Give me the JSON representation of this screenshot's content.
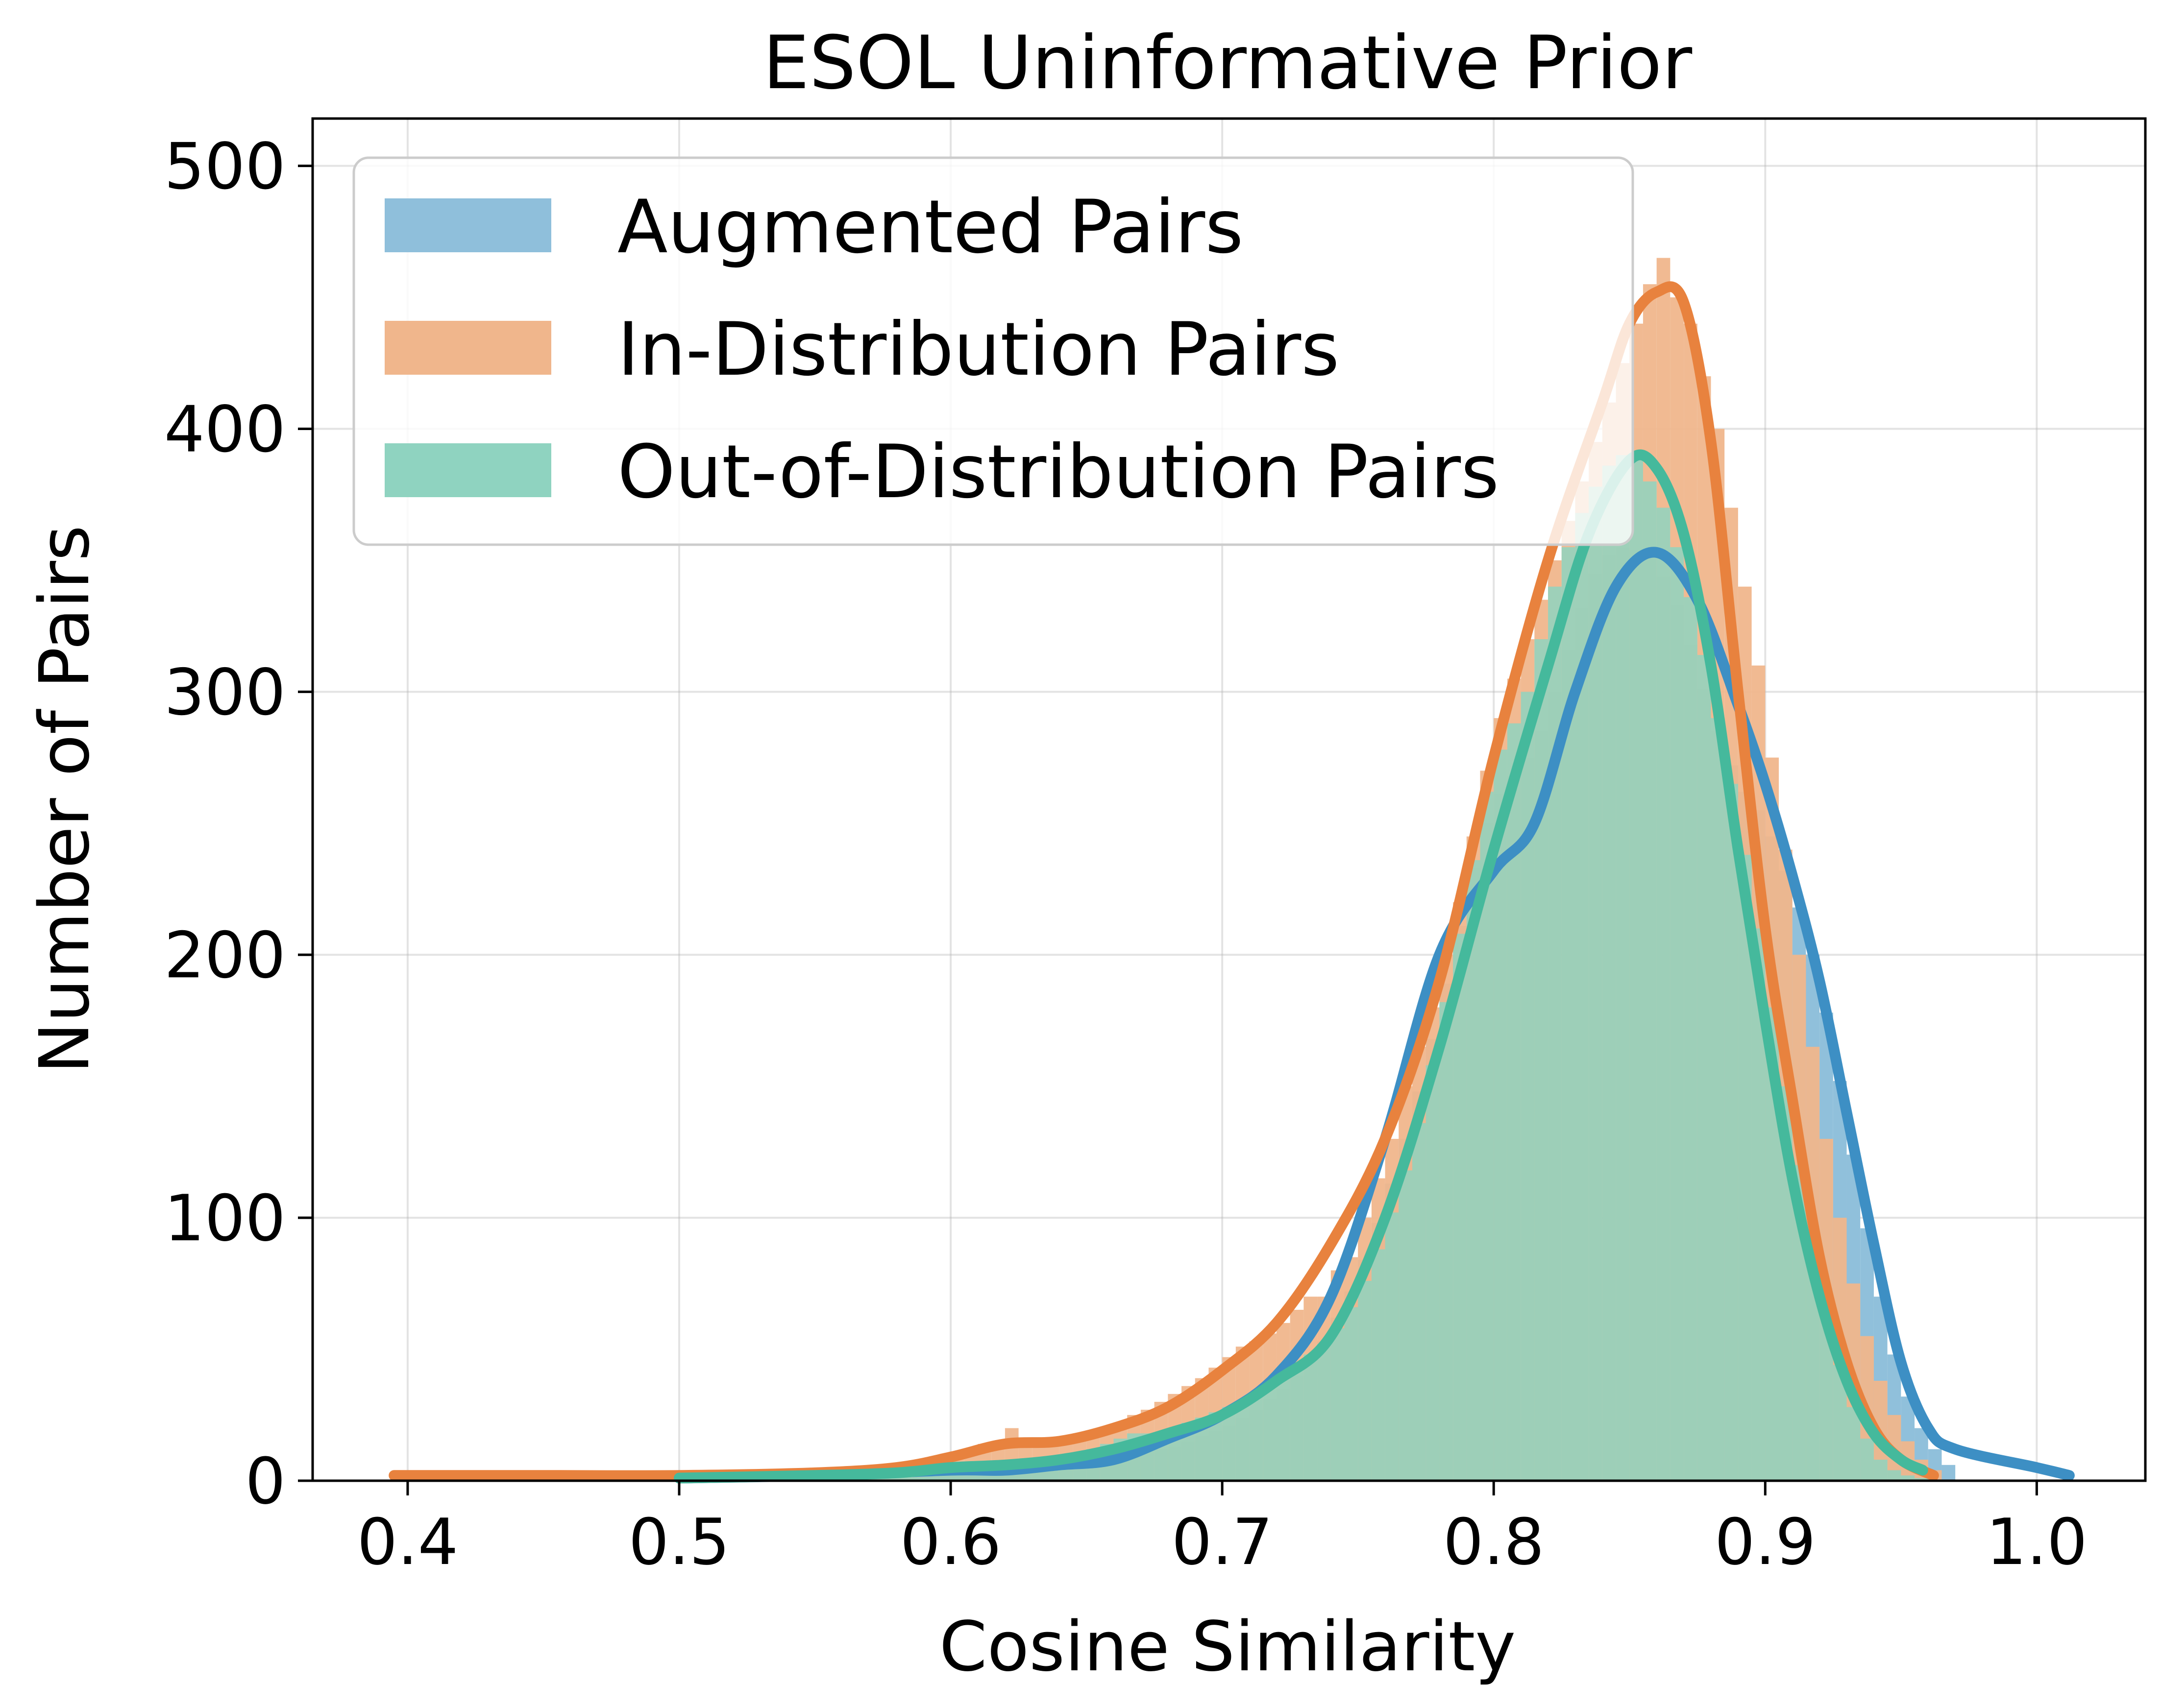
{
  "chart_data": {
    "type": "histogram",
    "title": "ESOL Uninformative Prior",
    "xlabel": "Cosine Similarity",
    "ylabel": "Number of Pairs",
    "xlim": [
      0.365,
      1.04
    ],
    "ylim": [
      0,
      518
    ],
    "xticks": [
      0.4,
      0.5,
      0.6,
      0.7,
      0.8,
      0.9,
      1.0
    ],
    "xtick_labels": [
      "0.4",
      "0.5",
      "0.6",
      "0.7",
      "0.8",
      "0.9",
      "1.0"
    ],
    "yticks": [
      0,
      100,
      200,
      300,
      400,
      500
    ],
    "ytick_labels": [
      "0",
      "100",
      "200",
      "300",
      "400",
      "500"
    ],
    "grid": true,
    "legend_position": "upper-left",
    "series": [
      {
        "name": "Augmented Pairs",
        "fill_color": "#8fbfdb",
        "line_color": "#3d8fc4",
        "bins": [
          0.515,
          0.52,
          0.525,
          0.53,
          0.535,
          0.54,
          0.545,
          0.55,
          0.555,
          0.56,
          0.565,
          0.57,
          0.575,
          0.58,
          0.585,
          0.59,
          0.595,
          0.6,
          0.605,
          0.61,
          0.615,
          0.62,
          0.625,
          0.63,
          0.635,
          0.64,
          0.645,
          0.65,
          0.655,
          0.66,
          0.665,
          0.67,
          0.675,
          0.68,
          0.685,
          0.69,
          0.695,
          0.7,
          0.705,
          0.71,
          0.715,
          0.72,
          0.725,
          0.73,
          0.735,
          0.74,
          0.745,
          0.75,
          0.755,
          0.76,
          0.765,
          0.77,
          0.775,
          0.78,
          0.785,
          0.79,
          0.795,
          0.8,
          0.805,
          0.81,
          0.815,
          0.82,
          0.825,
          0.83,
          0.835,
          0.84,
          0.845,
          0.85,
          0.855,
          0.86,
          0.865,
          0.87,
          0.875,
          0.88,
          0.885,
          0.89,
          0.895,
          0.9,
          0.905,
          0.91,
          0.915,
          0.92,
          0.925,
          0.93,
          0.935,
          0.94,
          0.945,
          0.95,
          0.955,
          0.96,
          0.965
        ],
        "counts": [
          2,
          0,
          1,
          0,
          1,
          1,
          1,
          2,
          1,
          1,
          2,
          1,
          2,
          2,
          3,
          2,
          3,
          3,
          4,
          3,
          4,
          4,
          5,
          5,
          6,
          6,
          7,
          7,
          8,
          9,
          10,
          11,
          12,
          13,
          15,
          17,
          19,
          21,
          24,
          27,
          31,
          35,
          40,
          46,
          53,
          62,
          72,
          84,
          98,
          113,
          130,
          148,
          168,
          189,
          211,
          233,
          250,
          261,
          268,
          275,
          285,
          300,
          316,
          332,
          345,
          352,
          355,
          354,
          351,
          344,
          333,
          318,
          301,
          285,
          272,
          262,
          255,
          245,
          232,
          218,
          200,
          178,
          152,
          124,
          96,
          70,
          48,
          32,
          20,
          12,
          6
        ],
        "kde": [
          [
            0.5,
            1
          ],
          [
            0.55,
            2
          ],
          [
            0.6,
            4
          ],
          [
            0.62,
            4
          ],
          [
            0.64,
            6
          ],
          [
            0.66,
            8
          ],
          [
            0.68,
            16
          ],
          [
            0.7,
            25
          ],
          [
            0.72,
            40
          ],
          [
            0.74,
            70
          ],
          [
            0.76,
            130
          ],
          [
            0.78,
            200
          ],
          [
            0.8,
            232
          ],
          [
            0.815,
            250
          ],
          [
            0.83,
            300
          ],
          [
            0.845,
            340
          ],
          [
            0.86,
            353
          ],
          [
            0.875,
            335
          ],
          [
            0.89,
            295
          ],
          [
            0.9,
            265
          ],
          [
            0.91,
            230
          ],
          [
            0.92,
            190
          ],
          [
            0.93,
            140
          ],
          [
            0.94,
            90
          ],
          [
            0.95,
            45
          ],
          [
            0.96,
            20
          ],
          [
            0.97,
            12
          ],
          [
            1.0,
            5
          ],
          [
            1.012,
            2
          ]
        ]
      },
      {
        "name": "In-Distribution Pairs",
        "fill_color": "#f0b68c",
        "line_color": "#e8823e",
        "bins": [
          0.395,
          0.4,
          0.405,
          0.41,
          0.415,
          0.42,
          0.425,
          0.43,
          0.435,
          0.44,
          0.445,
          0.45,
          0.455,
          0.46,
          0.465,
          0.47,
          0.475,
          0.48,
          0.485,
          0.49,
          0.495,
          0.5,
          0.505,
          0.51,
          0.515,
          0.52,
          0.525,
          0.53,
          0.535,
          0.54,
          0.545,
          0.55,
          0.555,
          0.56,
          0.565,
          0.57,
          0.575,
          0.58,
          0.585,
          0.59,
          0.595,
          0.6,
          0.605,
          0.61,
          0.615,
          0.62,
          0.625,
          0.63,
          0.635,
          0.64,
          0.645,
          0.65,
          0.655,
          0.66,
          0.665,
          0.67,
          0.675,
          0.68,
          0.685,
          0.69,
          0.695,
          0.7,
          0.705,
          0.71,
          0.715,
          0.72,
          0.725,
          0.73,
          0.735,
          0.74,
          0.745,
          0.75,
          0.755,
          0.76,
          0.765,
          0.77,
          0.775,
          0.78,
          0.785,
          0.79,
          0.795,
          0.8,
          0.805,
          0.81,
          0.815,
          0.82,
          0.825,
          0.83,
          0.835,
          0.84,
          0.845,
          0.85,
          0.855,
          0.86,
          0.865,
          0.87,
          0.875,
          0.88,
          0.885,
          0.89,
          0.895,
          0.9,
          0.905,
          0.91,
          0.915,
          0.92,
          0.925,
          0.93,
          0.935,
          0.94,
          0.945,
          0.95,
          0.955,
          0.96
        ],
        "counts": [
          2,
          2,
          2,
          2,
          2,
          2,
          2,
          2,
          2,
          2,
          2,
          2,
          2,
          3,
          3,
          3,
          3,
          3,
          2,
          2,
          2,
          2,
          2,
          2,
          2,
          3,
          3,
          3,
          3,
          4,
          4,
          4,
          5,
          5,
          5,
          6,
          6,
          7,
          7,
          8,
          9,
          10,
          12,
          14,
          14,
          20,
          16,
          15,
          15,
          17,
          18,
          19,
          20,
          22,
          25,
          27,
          30,
          33,
          36,
          39,
          43,
          47,
          51,
          53,
          56,
          60,
          65,
          70,
          70,
          80,
          85,
          100,
          115,
          130,
          150,
          165,
          180,
          200,
          220,
          245,
          270,
          290,
          305,
          320,
          335,
          350,
          365,
          380,
          395,
          410,
          425,
          440,
          455,
          465,
          450,
          440,
          420,
          400,
          370,
          340,
          310,
          275,
          240,
          200,
          165,
          130,
          100,
          75,
          55,
          38,
          25,
          15,
          8,
          4
        ],
        "kde": [
          [
            0.395,
            2
          ],
          [
            0.45,
            2
          ],
          [
            0.5,
            2
          ],
          [
            0.55,
            3
          ],
          [
            0.58,
            5
          ],
          [
            0.6,
            9
          ],
          [
            0.62,
            14
          ],
          [
            0.64,
            15
          ],
          [
            0.66,
            20
          ],
          [
            0.68,
            28
          ],
          [
            0.7,
            42
          ],
          [
            0.72,
            60
          ],
          [
            0.74,
            90
          ],
          [
            0.76,
            130
          ],
          [
            0.78,
            190
          ],
          [
            0.8,
            275
          ],
          [
            0.82,
            350
          ],
          [
            0.84,
            410
          ],
          [
            0.85,
            440
          ],
          [
            0.86,
            452
          ],
          [
            0.87,
            448
          ],
          [
            0.88,
            395
          ],
          [
            0.89,
            300
          ],
          [
            0.9,
            210
          ],
          [
            0.91,
            145
          ],
          [
            0.92,
            85
          ],
          [
            0.93,
            45
          ],
          [
            0.94,
            20
          ],
          [
            0.95,
            8
          ],
          [
            0.962,
            2
          ]
        ]
      },
      {
        "name": "Out-of-Distribution Pairs",
        "fill_color": "#8fd3c0",
        "line_color": "#45b99c",
        "bins": [
          0.5,
          0.505,
          0.51,
          0.515,
          0.52,
          0.525,
          0.53,
          0.535,
          0.54,
          0.545,
          0.55,
          0.555,
          0.56,
          0.565,
          0.57,
          0.575,
          0.58,
          0.585,
          0.59,
          0.595,
          0.6,
          0.605,
          0.61,
          0.615,
          0.62,
          0.625,
          0.63,
          0.635,
          0.64,
          0.645,
          0.65,
          0.655,
          0.66,
          0.665,
          0.67,
          0.675,
          0.68,
          0.685,
          0.69,
          0.695,
          0.7,
          0.705,
          0.71,
          0.715,
          0.72,
          0.725,
          0.73,
          0.735,
          0.74,
          0.745,
          0.75,
          0.755,
          0.76,
          0.765,
          0.77,
          0.775,
          0.78,
          0.785,
          0.79,
          0.795,
          0.8,
          0.805,
          0.81,
          0.815,
          0.82,
          0.825,
          0.83,
          0.835,
          0.84,
          0.845,
          0.85,
          0.855,
          0.86,
          0.865,
          0.87,
          0.875,
          0.88,
          0.885,
          0.89,
          0.895,
          0.9,
          0.905,
          0.91,
          0.915,
          0.92,
          0.925,
          0.93,
          0.935,
          0.94,
          0.945,
          0.95,
          0.955
        ],
        "counts": [
          1,
          1,
          1,
          1,
          1,
          1,
          2,
          2,
          2,
          2,
          2,
          2,
          2,
          3,
          3,
          3,
          4,
          4,
          4,
          5,
          5,
          5,
          6,
          6,
          6,
          7,
          7,
          8,
          9,
          10,
          12,
          14,
          16,
          18,
          18,
          18,
          20,
          22,
          24,
          26,
          28,
          30,
          33,
          36,
          40,
          44,
          48,
          52,
          58,
          66,
          76,
          88,
          102,
          118,
          136,
          158,
          182,
          208,
          236,
          262,
          278,
          288,
          300,
          320,
          340,
          355,
          368,
          378,
          386,
          390,
          388,
          380,
          370,
          355,
          336,
          314,
          290,
          265,
          238,
          210,
          180,
          150,
          120,
          92,
          66,
          44,
          28,
          16,
          8,
          4,
          2,
          1
        ],
        "kde": [
          [
            0.5,
            1
          ],
          [
            0.55,
            2
          ],
          [
            0.58,
            3
          ],
          [
            0.6,
            5
          ],
          [
            0.62,
            6
          ],
          [
            0.64,
            8
          ],
          [
            0.66,
            12
          ],
          [
            0.68,
            18
          ],
          [
            0.7,
            25
          ],
          [
            0.72,
            38
          ],
          [
            0.74,
            55
          ],
          [
            0.76,
            100
          ],
          [
            0.78,
            165
          ],
          [
            0.8,
            240
          ],
          [
            0.82,
            310
          ],
          [
            0.835,
            360
          ],
          [
            0.85,
            388
          ],
          [
            0.86,
            385
          ],
          [
            0.87,
            360
          ],
          [
            0.88,
            310
          ],
          [
            0.89,
            240
          ],
          [
            0.9,
            175
          ],
          [
            0.91,
            115
          ],
          [
            0.92,
            70
          ],
          [
            0.93,
            38
          ],
          [
            0.94,
            18
          ],
          [
            0.95,
            8
          ],
          [
            0.958,
            4
          ]
        ]
      }
    ]
  }
}
